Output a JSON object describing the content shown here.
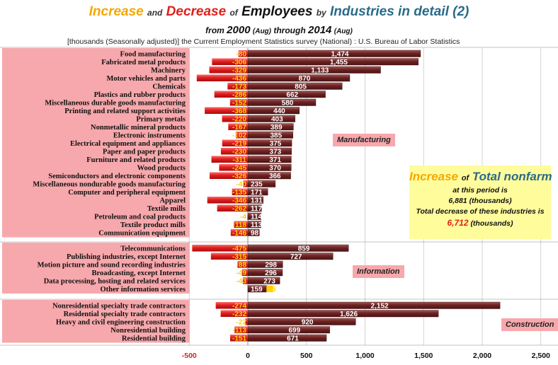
{
  "title": {
    "increase": "Increase",
    "and": "and",
    "decrease": "Decrease",
    "of": "of",
    "employees": "Employees",
    "by": "by",
    "industries": "Industries in detail (2)"
  },
  "subtitle": {
    "from": "from",
    "start_year": "2000",
    "start_month": "(Aug)",
    "through": "through",
    "end_year": "2014",
    "end_month": "(Aug)"
  },
  "source_note": "[thousands (Seasonally adjusted)]   the Current Employment Statistics survey (National) : U.S. Bureau of Labor Statistics",
  "sections": {
    "manufacturing": "Manufacturing",
    "information": "Information",
    "construction": "Construction"
  },
  "total_box": {
    "increase_word": "Increase",
    "of_word": "of",
    "total_nonfarm": "Total nonfarm",
    "period_line": "at this period is",
    "increase_value": "6,881",
    "increase_unit": "(thousands)",
    "decrease_line": "Total decrease of these industries is",
    "decrease_value": "6,712",
    "decrease_unit": "(thousands)"
  },
  "colors": {
    "increase_bar": "#7a2a2a",
    "decrease_bar": "#e01e1e",
    "row_band": "#f7a8ac",
    "label_negative": "#ffd200"
  },
  "chart_data": {
    "type": "bar",
    "orientation": "horizontal",
    "xlim": [
      -500,
      2500
    ],
    "xticks": [
      -500,
      0,
      500,
      1000,
      1500,
      2000,
      2500
    ],
    "xtick_labels": [
      "-500",
      "0",
      "500",
      "1,000",
      "1,500",
      "2,000",
      "2,500"
    ],
    "series": [
      {
        "name": "Increase",
        "key": "increase"
      },
      {
        "name": "Decrease",
        "key": "decrease"
      }
    ],
    "groups": [
      {
        "name": "Manufacturing",
        "rows": [
          {
            "label": "Food manufacturing",
            "increase": 1474,
            "decrease": -80,
            "inc_label": "1,474",
            "dec_label": "-80"
          },
          {
            "label": "Fabricated metal products",
            "increase": 1455,
            "decrease": -306,
            "inc_label": "1,455",
            "dec_label": "-306"
          },
          {
            "label": "Machinery",
            "increase": 1133,
            "decrease": -329,
            "inc_label": "1,133",
            "dec_label": "-329"
          },
          {
            "label": "Motor vehicles and parts",
            "increase": 870,
            "decrease": -436,
            "inc_label": "870",
            "dec_label": "-436"
          },
          {
            "label": "Chemicals",
            "increase": 805,
            "decrease": -173,
            "inc_label": "805",
            "dec_label": "-173"
          },
          {
            "label": "Plastics and rubber products",
            "increase": 662,
            "decrease": -286,
            "inc_label": "662",
            "dec_label": "-286"
          },
          {
            "label": "Miscellaneous durable goods manufacturing",
            "increase": 580,
            "decrease": -152,
            "inc_label": "580",
            "dec_label": "-152"
          },
          {
            "label": "Printing and related support activities",
            "increase": 440,
            "decrease": -368,
            "inc_label": "440",
            "dec_label": "-368"
          },
          {
            "label": "Primary metals",
            "increase": 403,
            "decrease": -220,
            "inc_label": "403",
            "dec_label": "-220"
          },
          {
            "label": "Nonmetallic mineral products",
            "increase": 389,
            "decrease": -167,
            "inc_label": "389",
            "dec_label": "-167"
          },
          {
            "label": "Electronic instruments",
            "increase": 385,
            "decrease": -102,
            "inc_label": "385",
            "dec_label": "-102"
          },
          {
            "label": "Electrical equipment and appliances",
            "increase": 375,
            "decrease": -219,
            "inc_label": "375",
            "dec_label": "-219"
          },
          {
            "label": "Paper and paper products",
            "increase": 373,
            "decrease": -230,
            "inc_label": "373",
            "dec_label": "-230"
          },
          {
            "label": "Furniture and related products",
            "increase": 371,
            "decrease": -311,
            "inc_label": "371",
            "dec_label": "-311"
          },
          {
            "label": "Wood products",
            "increase": 370,
            "decrease": -245,
            "inc_label": "370",
            "dec_label": "-245"
          },
          {
            "label": "Semiconductors and electronic components",
            "increase": 366,
            "decrease": -326,
            "inc_label": "366",
            "dec_label": "-326"
          },
          {
            "label": "Miscellaneous nondurable goods manufacturing",
            "increase": 235,
            "decrease": -40,
            "inc_label": "235",
            "dec_label": "-40"
          },
          {
            "label": "Computer and peripheral equipment",
            "increase": 171,
            "decrease": -135,
            "inc_label": "171",
            "dec_label": "-135"
          },
          {
            "label": "Apparel",
            "increase": 131,
            "decrease": -346,
            "inc_label": "131",
            "dec_label": "-346"
          },
          {
            "label": "Textile mills",
            "increase": 117,
            "decrease": -262,
            "inc_label": "117",
            "dec_label": "-262"
          },
          {
            "label": "Petroleum and coal products",
            "increase": 114,
            "decrease": -4,
            "inc_label": "114",
            "dec_label": "-4"
          },
          {
            "label": "Textile product mills",
            "increase": 113,
            "decrease": -118,
            "inc_label": "113",
            "dec_label": "-118"
          },
          {
            "label": "Communication equipment",
            "increase": 98,
            "decrease": -146,
            "inc_label": "98",
            "dec_label": "-146"
          }
        ]
      },
      {
        "name": "Information",
        "rows": [
          {
            "label": "Telecommunications",
            "increase": 859,
            "decrease": -475,
            "inc_label": "859",
            "dec_label": "-475"
          },
          {
            "label": "Publishing industries, except Internet",
            "increase": 727,
            "decrease": -315,
            "inc_label": "727",
            "dec_label": "-315"
          },
          {
            "label": "Motion picture and sound recording industries",
            "increase": 298,
            "decrease": -88,
            "inc_label": "298",
            "dec_label": "-88"
          },
          {
            "label": "Broadcasting, except Internet",
            "increase": 296,
            "decrease": -49,
            "inc_label": "296",
            "dec_label": "-49"
          },
          {
            "label": "Data processing, hosting and related services",
            "increase": 273,
            "decrease": -43,
            "inc_label": "273",
            "dec_label": "-43"
          },
          {
            "label": "Other information services",
            "increase": 159,
            "decrease": 55,
            "inc_label": "159",
            "dec_label": "55"
          }
        ]
      },
      {
        "name": "Construction",
        "rows": [
          {
            "label": "Nonresidential specialty trade contractors",
            "increase": 2152,
            "decrease": -274,
            "inc_label": "2,152",
            "dec_label": "-274"
          },
          {
            "label": "Residential specialty trade contractors",
            "increase": 1626,
            "decrease": -232,
            "inc_label": "1,626",
            "dec_label": "-232"
          },
          {
            "label": "Heavy and civil engineering construction",
            "increase": 920,
            "decrease": -22,
            "inc_label": "920",
            "dec_label": "-22"
          },
          {
            "label": "Nonresidential building",
            "increase": 699,
            "decrease": -113,
            "inc_label": "699",
            "dec_label": "-113"
          },
          {
            "label": "Residential building",
            "increase": 671,
            "decrease": -151,
            "inc_label": "671",
            "dec_label": "-151"
          }
        ]
      }
    ]
  }
}
